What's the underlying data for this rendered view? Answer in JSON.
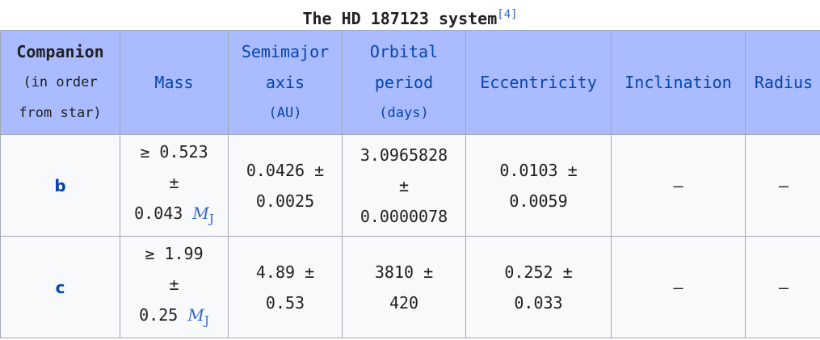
{
  "caption": {
    "title": "The HD 187123 system",
    "ref": "[4]"
  },
  "headers": {
    "companion": {
      "line1": "Companion",
      "line2": "(in order",
      "line3": "from star)"
    },
    "mass": "Mass",
    "semimajor": {
      "line1": "Semimajor",
      "line2": "axis",
      "unit": "(AU)"
    },
    "period": {
      "line1": "Orbital",
      "line2": "period",
      "unit": "(days)"
    },
    "eccentricity": "Eccentricity",
    "inclination": "Inclination",
    "radius": "Radius"
  },
  "rows": [
    {
      "name": "b",
      "mass": {
        "value": "≥ 0.523",
        "pm": "±",
        "err": "0.043",
        "unit": "M",
        "unit_sub": "J"
      },
      "semimajor": {
        "value": "0.0426 ±",
        "err": "0.0025"
      },
      "period": {
        "value": "3.0965828",
        "pm": "±",
        "err": "0.0000078"
      },
      "eccentricity": {
        "value": "0.0103 ±",
        "err": "0.0059"
      },
      "inclination": "—",
      "radius": "—"
    },
    {
      "name": "c",
      "mass": {
        "value": "≥ 1.99",
        "pm": "±",
        "err": "0.25",
        "unit": "M",
        "unit_sub": "J"
      },
      "semimajor": {
        "value": "4.89 ±",
        "err": "0.53"
      },
      "period": {
        "value": "3810 ±",
        "err": "420"
      },
      "eccentricity": {
        "value": "0.252 ±",
        "err": "0.033"
      },
      "inclination": "—",
      "radius": "—"
    }
  ]
}
